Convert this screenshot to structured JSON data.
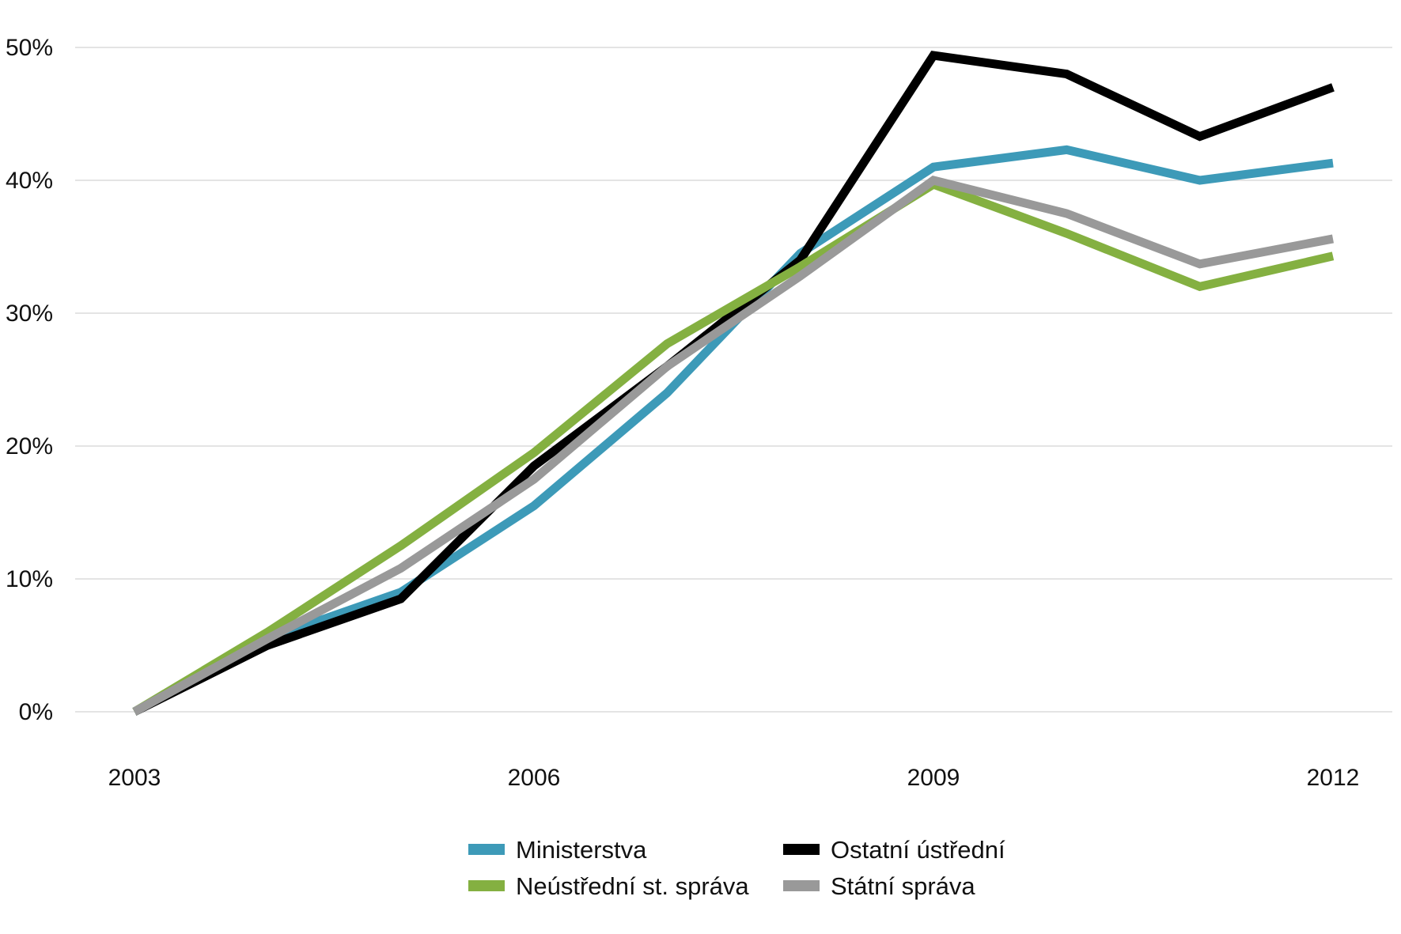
{
  "chart_data": {
    "type": "line",
    "title": "",
    "xlabel": "",
    "ylabel": "",
    "x": [
      2003,
      2004,
      2005,
      2006,
      2007,
      2008,
      2009,
      2010,
      2011,
      2012
    ],
    "x_tick_values": [
      2003,
      2006,
      2009,
      2012
    ],
    "x_tick_labels": [
      "2003",
      "2006",
      "2009",
      "2012"
    ],
    "y_tick_values": [
      0,
      10,
      20,
      30,
      40,
      50
    ],
    "y_tick_labels": [
      "0%",
      "10%",
      "20%",
      "30%",
      "40%",
      "50%"
    ],
    "ylim": [
      0,
      50
    ],
    "grid": "horizontal",
    "legend_position": "bottom",
    "series": [
      {
        "name": "Ministerstva",
        "color": "#3d9ab8",
        "values": [
          0,
          5.5,
          9.0,
          15.5,
          24.0,
          34.5,
          41.0,
          42.3,
          40.0,
          41.3
        ]
      },
      {
        "name": "Ostatní ústřední",
        "color": "#000000",
        "values": [
          0,
          5.0,
          8.5,
          18.5,
          26.0,
          34.0,
          49.4,
          48.0,
          43.3,
          47.0
        ]
      },
      {
        "name": "Neústřední st. správa",
        "color": "#84b041",
        "values": [
          0,
          6.0,
          12.5,
          19.5,
          27.7,
          33.5,
          39.7,
          36.0,
          32.0,
          34.3
        ]
      },
      {
        "name": "Státní správa",
        "color": "#999999",
        "values": [
          0,
          5.5,
          10.8,
          17.5,
          26.0,
          32.8,
          40.0,
          37.5,
          33.7,
          35.6
        ]
      }
    ],
    "legend_order": [
      0,
      1,
      2,
      3
    ]
  }
}
